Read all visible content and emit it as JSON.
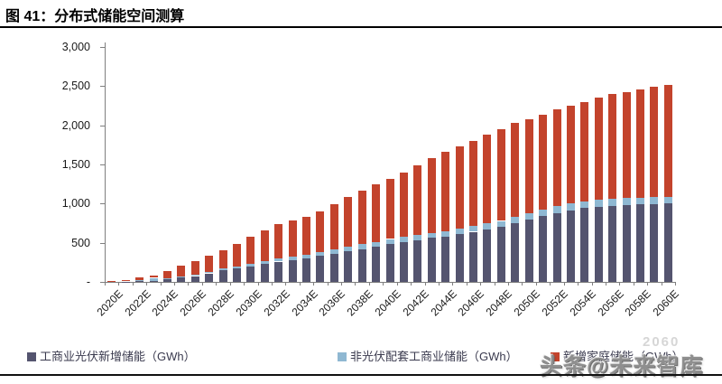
{
  "title": "图 41：分布式储能空间测算",
  "watermark": {
    "text": "头条@未来智库",
    "faint": "2060"
  },
  "legend": {
    "items": [
      {
        "label": "工商业光伏新增储能（GWh）",
        "color": "#54546F"
      },
      {
        "label": "非光伏配套工商业储能（GWh）",
        "color": "#8FB8D2"
      },
      {
        "label": "新增家庭储能（GWh）",
        "color": "#C3432C"
      }
    ]
  },
  "chart_data": {
    "type": "bar",
    "stacked": true,
    "title": "分布式储能空间测算",
    "xlabel": "",
    "ylabel": "",
    "unit": "GWh",
    "ylim": [
      0,
      3000
    ],
    "y_tick_interval": 500,
    "y_tick_labels": [
      "-",
      "500",
      "1,000",
      "1,500",
      "2,000",
      "2,500",
      "3,000"
    ],
    "grid": false,
    "legend_position": "bottom",
    "x_label_every": 2,
    "categories": [
      "2020E",
      "2021E",
      "2022E",
      "2023E",
      "2024E",
      "2025E",
      "2026E",
      "2027E",
      "2028E",
      "2029E",
      "2030E",
      "2031E",
      "2032E",
      "2033E",
      "2034E",
      "2035E",
      "2036E",
      "2037E",
      "2038E",
      "2039E",
      "2040E",
      "2041E",
      "2042E",
      "2043E",
      "2044E",
      "2045E",
      "2046E",
      "2047E",
      "2048E",
      "2049E",
      "2050E",
      "2051E",
      "2052E",
      "2053E",
      "2054E",
      "2055E",
      "2056E",
      "2057E",
      "2058E",
      "2059E",
      "2060E"
    ],
    "series": [
      {
        "name": "工商业光伏新增储能（GWh）",
        "color": "#54546F",
        "values": [
          2,
          5,
          8,
          12,
          35,
          55,
          75,
          110,
          145,
          170,
          200,
          235,
          260,
          280,
          300,
          330,
          360,
          390,
          420,
          450,
          485,
          510,
          535,
          560,
          580,
          610,
          640,
          670,
          700,
          750,
          800,
          840,
          880,
          915,
          945,
          960,
          975,
          985,
          990,
          995,
          1000
        ]
      },
      {
        "name": "非光伏配套工商业储能（GWh）",
        "color": "#8FB8D2",
        "values": [
          1,
          3,
          12,
          40,
          15,
          18,
          20,
          22,
          25,
          28,
          32,
          35,
          38,
          42,
          48,
          52,
          55,
          58,
          60,
          62,
          63,
          65,
          66,
          68,
          70,
          72,
          74,
          76,
          78,
          80,
          82,
          83,
          84,
          85,
          85,
          86,
          86,
          87,
          87,
          88,
          88
        ]
      },
      {
        "name": "新增家庭储能（GWh）",
        "color": "#C3432C",
        "values": [
          7,
          17,
          35,
          28,
          90,
          137,
          175,
          208,
          230,
          292,
          343,
          390,
          442,
          468,
          482,
          523,
          580,
          632,
          685,
          733,
          772,
          825,
          889,
          957,
          1010,
          1043,
          1086,
          1129,
          1172,
          1195,
          1198,
          1212,
          1236,
          1250,
          1270,
          1304,
          1339,
          1353,
          1383,
          1407,
          1422
        ]
      }
    ]
  }
}
